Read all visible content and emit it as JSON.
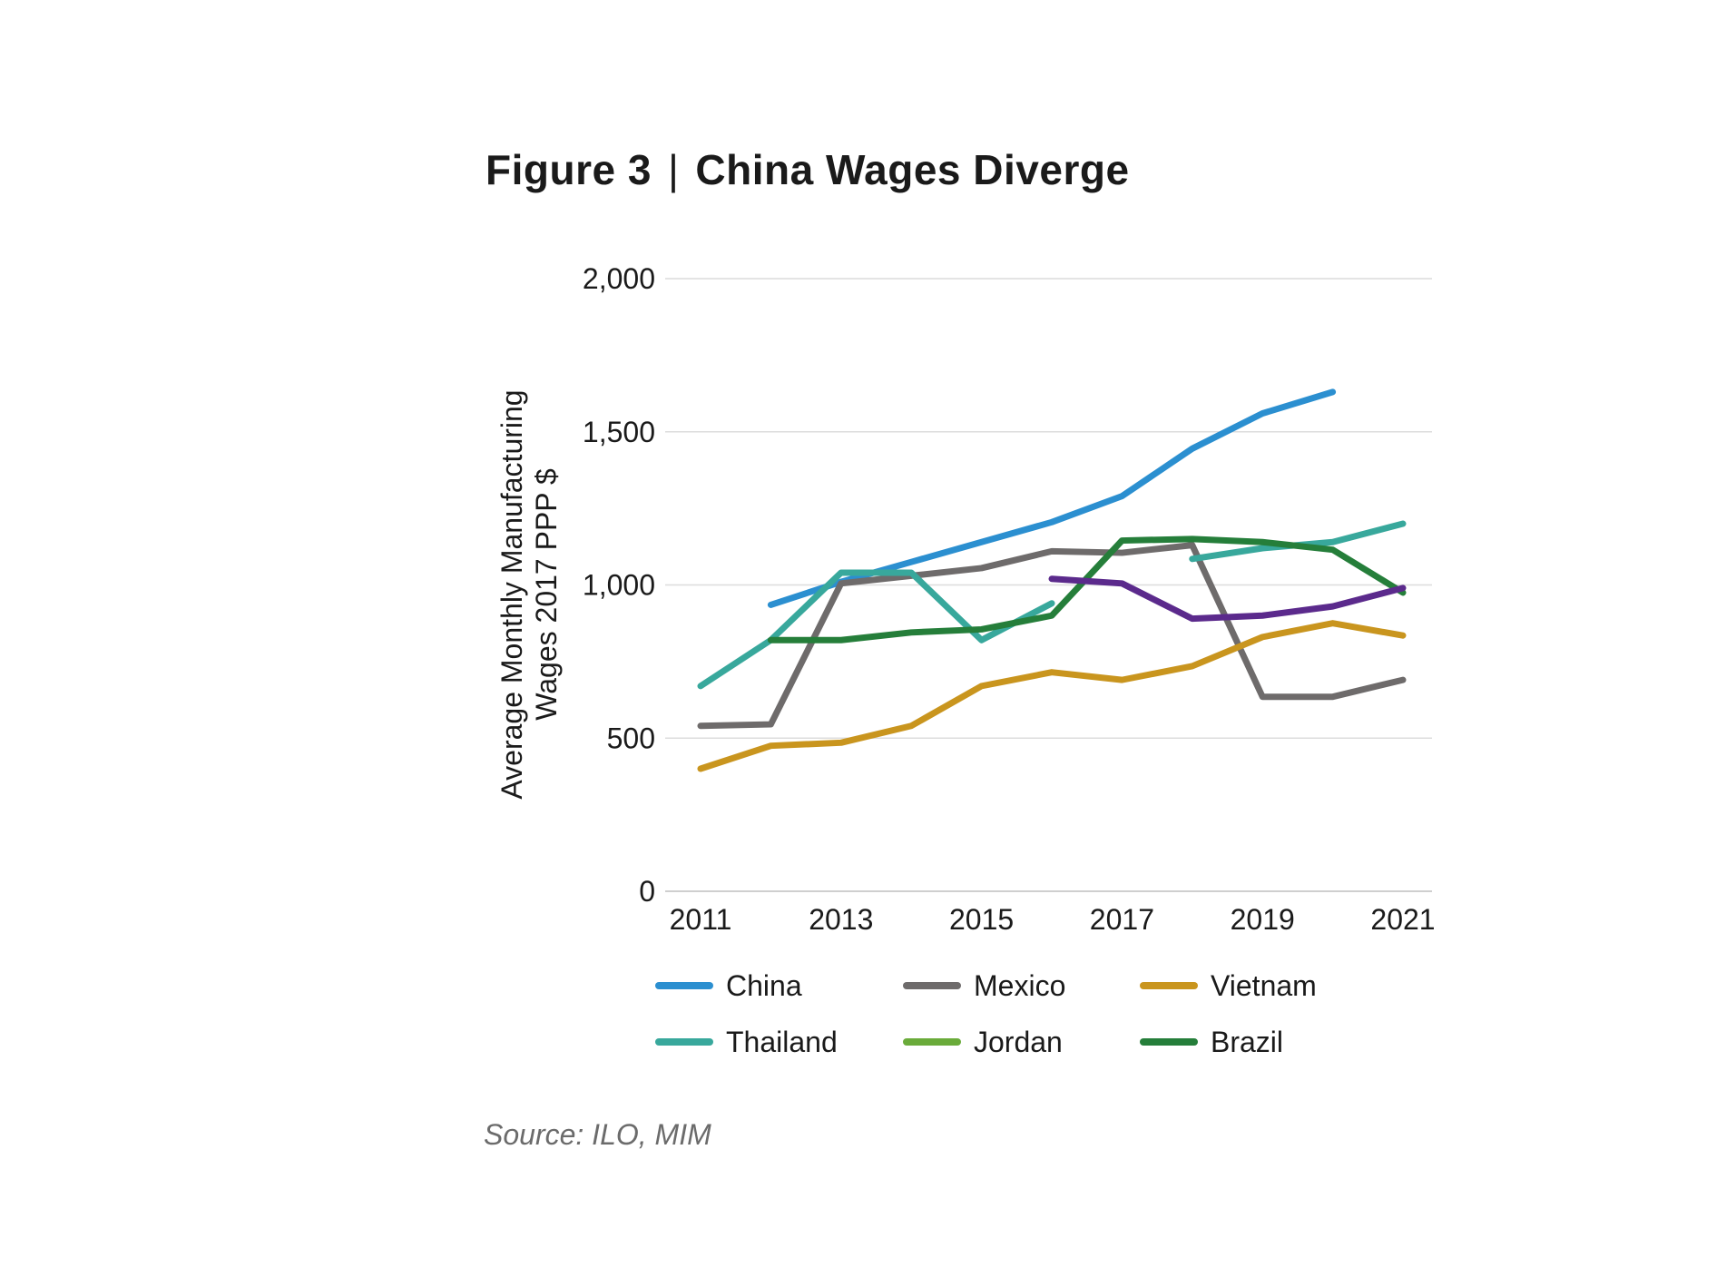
{
  "figure": {
    "label": "Figure 3",
    "separator": "|",
    "title": "China Wages Diverge"
  },
  "source": "Source: ILO, MIM",
  "chart_data": {
    "type": "line",
    "title": "China Wages Diverge",
    "xlabel": "",
    "ylabel_lines": [
      "Average Monthly Manufacturing",
      "Wages 2017 PPP $"
    ],
    "x": [
      2011,
      2012,
      2013,
      2014,
      2015,
      2016,
      2017,
      2018,
      2019,
      2020,
      2021
    ],
    "x_tick_labels": [
      "2011",
      "2013",
      "2015",
      "2017",
      "2019",
      "2021"
    ],
    "x_tick_values": [
      2011,
      2013,
      2015,
      2017,
      2019,
      2021
    ],
    "y_tick_values": [
      0,
      500,
      1000,
      1500,
      2000
    ],
    "y_tick_labels": [
      "0",
      "500",
      "1,000",
      "1,500",
      "2,000"
    ],
    "ylim": [
      0,
      2000
    ],
    "xlim": [
      2011,
      2021
    ],
    "grid": true,
    "legend_position": "bottom",
    "series": [
      {
        "name": "China",
        "color": "#2b8fd0",
        "values": [
          null,
          935,
          1010,
          1075,
          1140,
          1205,
          1290,
          1445,
          1560,
          1630,
          null
        ]
      },
      {
        "name": "Mexico",
        "color": "#6e6b6b",
        "values": [
          540,
          545,
          1005,
          1030,
          1055,
          1110,
          1105,
          1130,
          635,
          635,
          690
        ]
      },
      {
        "name": "Vietnam",
        "color": "#c9951e",
        "values": [
          400,
          475,
          485,
          540,
          670,
          715,
          690,
          735,
          830,
          875,
          835
        ]
      },
      {
        "name": "Thailand",
        "color": "#38a89c",
        "values": [
          670,
          820,
          1040,
          1040,
          820,
          940,
          null,
          1085,
          1120,
          1140,
          1200
        ]
      },
      {
        "name": "Jordan",
        "color": "#6aab3a",
        "values": [
          null,
          null,
          null,
          null,
          null,
          null,
          null,
          null,
          null,
          null,
          null
        ]
      },
      {
        "name": "Brazil",
        "color": "#257e3a",
        "values": [
          null,
          820,
          820,
          845,
          855,
          900,
          1145,
          1150,
          1140,
          1115,
          975
        ]
      },
      {
        "name": "",
        "color": "#5b2a8c",
        "show_in_legend": false,
        "values": [
          null,
          null,
          null,
          null,
          null,
          1020,
          1005,
          890,
          900,
          930,
          990
        ]
      }
    ]
  }
}
